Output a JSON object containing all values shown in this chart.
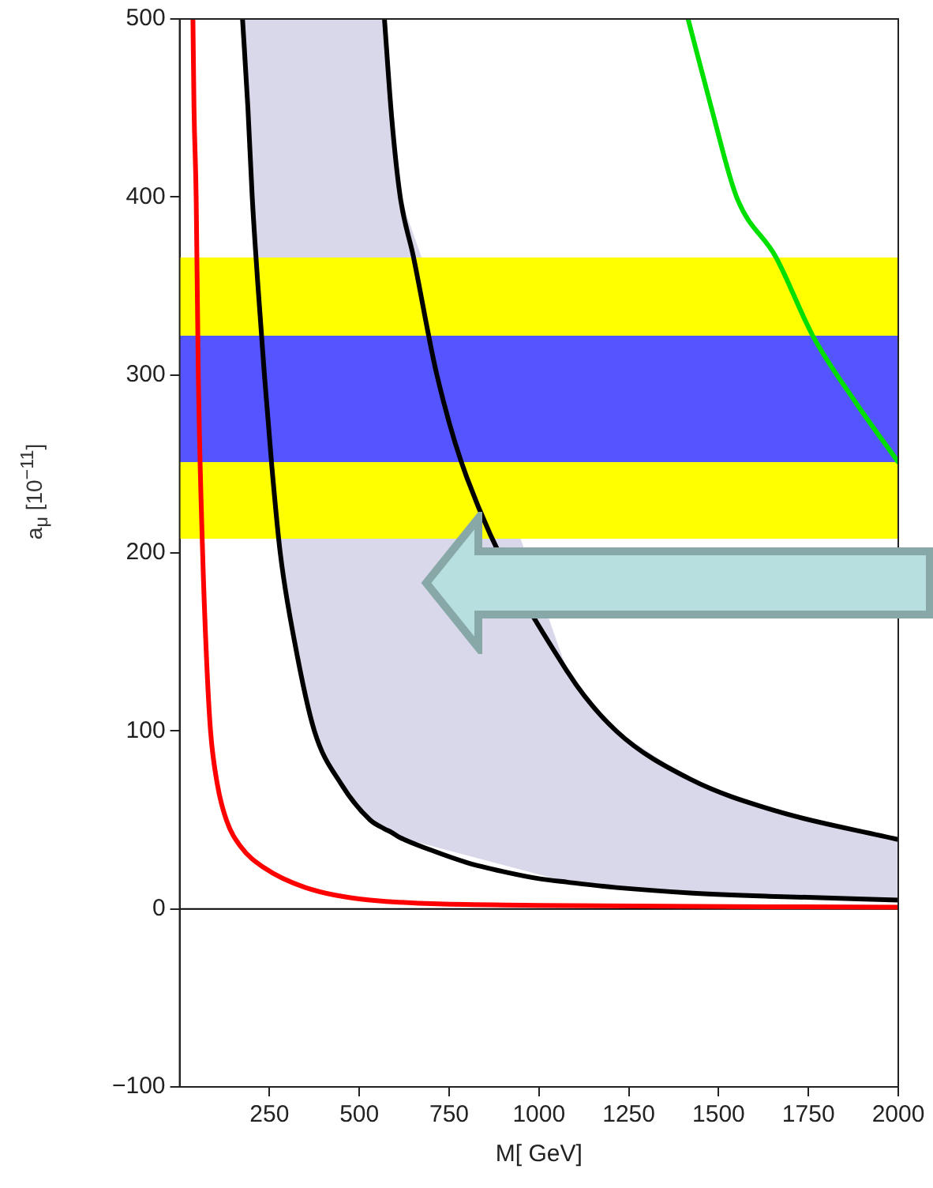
{
  "chart_data": {
    "type": "line",
    "xlabel": "M[ GeV]",
    "ylabel": "a$_{μ}$ [10$^{−11}$]",
    "xlim": [
      0,
      2000
    ],
    "xticks": [
      250,
      500,
      750,
      1000,
      1250,
      1500,
      1750,
      2000
    ],
    "ylim": [
      -100,
      500
    ],
    "yticks": [
      {
        "value": -100,
        "label": "−100"
      },
      0,
      100,
      200,
      300,
      400,
      500
    ],
    "grid": false,
    "legend": false,
    "marker": "none",
    "line_style": "solid",
    "bands": [
      {
        "axis": "y",
        "from": 208,
        "to": 366,
        "color": "#ffff00"
      },
      {
        "axis": "y",
        "from": 251,
        "to": 322,
        "color": "#5555ff"
      }
    ],
    "ref_lines": [
      {
        "axis": "y",
        "value": 0,
        "color": "#000000"
      }
    ],
    "series": [
      {
        "color": "#ff0000",
        "x": [
          37,
          40,
          46,
          52,
          64,
          75,
          86,
          105,
          130,
          170,
          236,
          350,
          530,
          1000,
          2000
        ],
        "values": [
          500,
          450,
          400,
          300,
          200,
          140,
          100,
          70,
          50,
          35,
          23,
          12,
          5,
          2,
          1
        ]
      },
      {
        "color": "#000000",
        "x": [
          175,
          190,
          202,
          218,
          236,
          256,
          280,
          320,
          375,
          450,
          530,
          570,
          590,
          614,
          700,
          800,
          900,
          1000,
          1080,
          1215,
          1420,
          1660,
          2000
        ],
        "values": [
          500,
          450,
          400,
          350,
          300,
          250,
          200,
          150,
          100,
          70,
          50,
          45,
          43,
          40,
          33,
          26,
          21,
          17,
          15,
          12,
          9,
          7,
          5
        ],
        "lower": [
          500,
          450,
          400,
          null,
          null,
          null,
          200,
          150,
          100,
          70,
          50,
          45,
          43,
          40,
          null,
          null,
          null,
          null,
          15,
          12,
          9,
          7,
          5
        ],
        "upper": [
          500,
          500,
          500,
          null,
          null,
          null,
          500,
          500,
          500,
          500,
          500,
          500,
          445,
          400,
          null,
          null,
          null,
          null,
          133,
          100,
          73,
          55,
          39
        ]
      },
      {
        "color": "#000000",
        "x": [
          570,
          590,
          614,
          650,
          716,
          800,
          1080,
          1215,
          1420,
          1660,
          2000
        ],
        "values": [
          500,
          445,
          400,
          367,
          300,
          242,
          133,
          100,
          73,
          55,
          39
        ]
      },
      {
        "color": "#00e000",
        "x": [
          1415,
          1480,
          1550,
          1660,
          1762,
          1880,
          2000
        ],
        "values": [
          500,
          450,
          400,
          366,
          322,
          285,
          251
        ]
      }
    ]
  }
}
